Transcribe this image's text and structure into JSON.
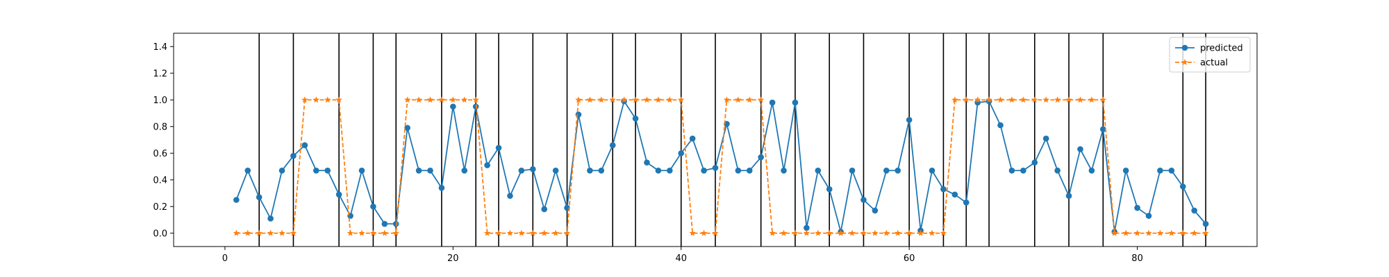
{
  "chart_data": {
    "type": "line",
    "title": "",
    "xlabel": "",
    "ylabel": "",
    "xlim": [
      -4.5,
      90.5
    ],
    "ylim": [
      -0.1,
      1.5
    ],
    "xticks": [
      0,
      20,
      40,
      60,
      80
    ],
    "yticks": [
      0.0,
      0.2,
      0.4,
      0.6,
      0.8,
      1.0,
      1.2,
      1.4
    ],
    "ytick_labels": [
      "0.0",
      "0.2",
      "0.4",
      "0.6",
      "0.8",
      "1.0",
      "1.2",
      "1.4"
    ],
    "grid": false,
    "legend": "top-right",
    "vlines": [
      3,
      6,
      10,
      13,
      15,
      19,
      22,
      24,
      27,
      30,
      34,
      36,
      40,
      43,
      47,
      50,
      53,
      56,
      60,
      63,
      65,
      67,
      71,
      74,
      77,
      84,
      86
    ],
    "x": [
      1,
      2,
      3,
      4,
      5,
      6,
      7,
      8,
      9,
      10,
      11,
      12,
      13,
      14,
      15,
      16,
      17,
      18,
      19,
      20,
      21,
      22,
      23,
      24,
      25,
      26,
      27,
      28,
      29,
      30,
      31,
      32,
      33,
      34,
      35,
      36,
      37,
      38,
      39,
      40,
      41,
      42,
      43,
      44,
      45,
      46,
      47,
      48,
      49,
      50,
      51,
      52,
      53,
      54,
      55,
      56,
      57,
      58,
      59,
      60,
      61,
      62,
      63,
      64,
      65,
      66,
      67,
      68,
      69,
      70,
      71,
      72,
      73,
      74,
      75,
      76,
      77,
      78,
      79,
      80,
      81,
      82,
      83,
      84,
      85,
      86
    ],
    "series": [
      {
        "name": "predicted",
        "color": "#1f77b4",
        "style": "solid",
        "marker": "circle",
        "values": [
          0.25,
          0.47,
          0.27,
          0.11,
          0.47,
          0.58,
          0.66,
          0.47,
          0.47,
          0.29,
          0.13,
          0.47,
          0.2,
          0.07,
          0.07,
          0.79,
          0.47,
          0.47,
          0.34,
          0.95,
          0.47,
          0.95,
          0.51,
          0.64,
          0.28,
          0.47,
          0.48,
          0.18,
          0.47,
          0.19,
          0.89,
          0.47,
          0.47,
          0.66,
          0.99,
          0.86,
          0.53,
          0.47,
          0.47,
          0.6,
          0.71,
          0.47,
          0.49,
          0.82,
          0.47,
          0.47,
          0.57,
          0.98,
          0.47,
          0.98,
          0.04,
          0.47,
          0.33,
          0.01,
          0.47,
          0.25,
          0.17,
          0.47,
          0.47,
          0.85,
          0.02,
          0.47,
          0.33,
          0.29,
          0.23,
          0.98,
          0.99,
          0.81,
          0.47,
          0.47,
          0.53,
          0.71,
          0.47,
          0.28,
          0.63,
          0.47,
          0.78,
          0.01,
          0.47,
          0.19,
          0.13,
          0.47,
          0.47,
          0.35,
          0.17,
          0.07
        ]
      },
      {
        "name": "actual",
        "color": "#ff7f0e",
        "style": "dashed",
        "marker": "star",
        "values": [
          0,
          0,
          0,
          0,
          0,
          0,
          1,
          1,
          1,
          1,
          0,
          0,
          0,
          0,
          0,
          1,
          1,
          1,
          1,
          1,
          1,
          1,
          0,
          0,
          0,
          0,
          0,
          0,
          0,
          0,
          1,
          1,
          1,
          1,
          1,
          1,
          1,
          1,
          1,
          1,
          0,
          0,
          0,
          1,
          1,
          1,
          1,
          0,
          0,
          0,
          0,
          0,
          0,
          0,
          0,
          0,
          0,
          0,
          0,
          0,
          0,
          0,
          0,
          1,
          1,
          1,
          1,
          1,
          1,
          1,
          1,
          1,
          1,
          1,
          1,
          1,
          1,
          0,
          0,
          0,
          0,
          0,
          0,
          0,
          0,
          0
        ]
      }
    ]
  }
}
